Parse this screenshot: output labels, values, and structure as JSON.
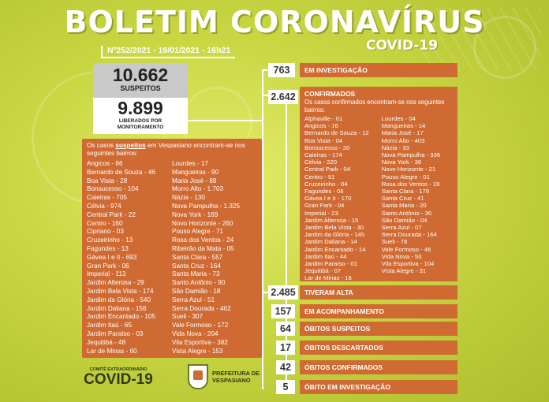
{
  "header": {
    "title": "BOLETIM CORONAVÍRUS",
    "subtitle": "COVID-19",
    "edition": "Nº252/2021 - 19/01/2021 - 16h21"
  },
  "summary": {
    "suspeitos_value": "10.662",
    "suspeitos_label": "SUSPEITOS",
    "liberados_value": "9.899",
    "liberados_label_1": "LIBERADOS POR",
    "liberados_label_2": "MONITORAMENTO"
  },
  "suspects_panel": {
    "intro_before": "Os casos ",
    "intro_emph": "suspeitos",
    "intro_after": " em Vespasiano encontram-se nos seguintes bairros:",
    "col1": [
      "Angicos - 86",
      "Bernardo de Souza - 46",
      "Boa Vista - 28",
      "Bonsucesso - 104",
      "Caieiras - 705",
      "Célvia - 974",
      "Central Park - 22",
      "Centro - 160",
      "Cipriano - 03",
      "Cruzeirinho - 13",
      "Fagundes - 13",
      "Gávea I e II - 693",
      "Gran Park - 06",
      "Imperial - 113",
      "Jardim Alterosa - 29",
      "Jardim Bela Vista - 174",
      "Jardim da Glória - 540",
      "Jardim Daliana - 156",
      "Jardim Encantado - 105",
      "Jardim Itaú - 65",
      "Jardim Paraíso - 03",
      "Jequitibá - 48",
      "Lar de Minas - 60"
    ],
    "col2": [
      "Lourdes - 17",
      "Mangueiras - 90",
      "Maria José - 89",
      "Morro Alto - 1.703",
      "Názia - 130",
      "Nova Pampulha - 1.325",
      "Nova York - 169",
      "Novo Horizonte - 260",
      "Pouso Alegre - 71",
      "Rosa dos Ventos - 24",
      "Ribeirão da Mata - 05",
      "Santa Clara - 557",
      "Santa Cruz - 164",
      "Santa Maria - 73",
      "Santo Antônio - 90",
      "São Damião - 18",
      "Serra Azul - 51",
      "Serra Dourada - 462",
      "Sueli - 307",
      "Vale Formoso - 172",
      "Vida Nova - 204",
      "Vila Esportiva - 382",
      "Vista Alegre - 153"
    ]
  },
  "stats": {
    "investigacao_value": "763",
    "investigacao_label": "EM INVESTIGAÇÃO",
    "confirmados_value": "2.642",
    "confirmados_label": "CONFIRMADOS",
    "alta_value": "2.485",
    "alta_label": "TIVERAM ALTA",
    "acompanhamento_value": "157",
    "acompanhamento_label": "EM ACOMPANHAMENTO",
    "obitos_suspeitos_value": "64",
    "obitos_suspeitos_label": "ÓBITOS SUSPEITOS",
    "obitos_descartados_value": "17",
    "obitos_descartados_label": "ÓBITOS DESCARTADOS",
    "obitos_confirmados_value": "42",
    "obitos_confirmados_label": "ÓBITOS CONFIRMADOS",
    "obito_investigacao_value": "5",
    "obito_investigacao_label": "ÓBITO EM INVESTIGAÇÃO"
  },
  "confirmed_panel": {
    "intro": "Os casos confirmados encontram-se nos seguintes bairros:",
    "col1": [
      "Alphaville - 01",
      "Angicos - 16",
      "Bernardo de Souza - 12",
      "Boa Vista - 04",
      "Bonsucesso - 20",
      "Caieiras - 174",
      "Célvia - 220",
      "Central Park - 04",
      "Centro - 51",
      "Cruzeirinho - 04",
      "Fagundes - 06",
      "Gávea I e II - 170",
      "Gran Park - 04",
      "Imperial - 23",
      "Jardim Alterosa - 15",
      "Jardim Bela Vista - 30",
      "Jardim da Glória - 145",
      "Jardim Daliana - 14",
      "Jardim Encantado - 14",
      "Jardim Itaú - 44",
      "Jardim Paraíso - 01",
      "Jequitibá - 07",
      "Lar de Minas - 16"
    ],
    "col2": [
      "Lourdes - 04",
      "Mangueiras - 14",
      "Maria José - 17",
      "Morro Alto - 403",
      "Názia - 33",
      "Nova Pampulha - 336",
      "Nova York - 36",
      "Novo Horizonte - 21",
      "Pouso Alegre - 01",
      "Rosa dos Ventos - 19",
      "Santa Clara - 179",
      "Santa Cruz - 41",
      "Santa Maria - 20",
      "Santo Antônio - 36",
      "São Damião - 04",
      "Serra Azul - 07",
      "Serra Dourada - 164",
      "Sueli - 78",
      "Vale Formoso - 46",
      "Vida Nova - 53",
      "Vila Esportiva - 104",
      "Vista Alegre - 31"
    ]
  },
  "footer": {
    "committee_small": "COMITÊ EXTRAORDINÁRIO",
    "committee_big": "COVID-19",
    "prefeitura_1": "PREFEITURA DE",
    "prefeitura_2": "VESPASIANO"
  },
  "colors": {
    "panel": "#d06a33",
    "background": "#c9d743"
  }
}
